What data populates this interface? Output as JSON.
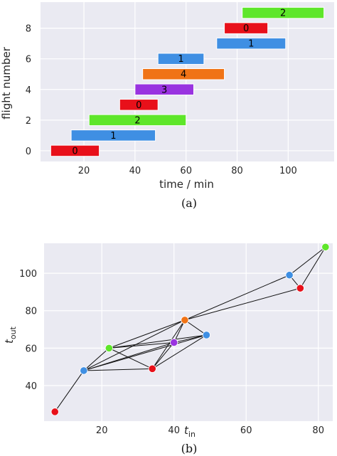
{
  "chart_data": [
    {
      "type": "bar",
      "panel_label": "(a)",
      "xlabel": "time / min",
      "ylabel": "flight number",
      "xticks": [
        20,
        40,
        60,
        80,
        100
      ],
      "yticks": [
        0,
        2,
        4,
        6,
        8
      ],
      "xlim": [
        3,
        118
      ],
      "ylim": [
        -0.7,
        9.7
      ],
      "grid": true,
      "bars": [
        {
          "y": 0,
          "start": 7,
          "end": 26,
          "label": "0",
          "color": "#e8101a"
        },
        {
          "y": 1,
          "start": 15,
          "end": 48,
          "label": "1",
          "color": "#3f8fe3"
        },
        {
          "y": 2,
          "start": 22,
          "end": 60,
          "label": "2",
          "color": "#5ee62a"
        },
        {
          "y": 3,
          "start": 34,
          "end": 49,
          "label": "0",
          "color": "#e8101a"
        },
        {
          "y": 4,
          "start": 40,
          "end": 63,
          "label": "3",
          "color": "#9933e0"
        },
        {
          "y": 5,
          "start": 43,
          "end": 75,
          "label": "4",
          "color": "#f07316"
        },
        {
          "y": 6,
          "start": 49,
          "end": 67,
          "label": "1",
          "color": "#3f8fe3"
        },
        {
          "y": 7,
          "start": 72,
          "end": 99,
          "label": "1",
          "color": "#3f8fe3"
        },
        {
          "y": 8,
          "start": 75,
          "end": 92,
          "label": "0",
          "color": "#e8101a"
        },
        {
          "y": 9,
          "start": 82,
          "end": 114,
          "label": "2",
          "color": "#5ee62a"
        }
      ]
    },
    {
      "type": "scatter",
      "panel_label": "(b)",
      "xlabel_main": "t",
      "xlabel_sub": "in",
      "ylabel_main": "t",
      "ylabel_sub": "out",
      "xticks": [
        20,
        40,
        60,
        80
      ],
      "yticks": [
        40,
        60,
        80,
        100
      ],
      "xlim": [
        4,
        84
      ],
      "ylim": [
        21,
        116
      ],
      "grid": true,
      "points": [
        {
          "x": 7,
          "y": 26,
          "color": "#e8101a"
        },
        {
          "x": 15,
          "y": 48,
          "color": "#3f8fe3"
        },
        {
          "x": 22,
          "y": 60,
          "color": "#5ee62a"
        },
        {
          "x": 34,
          "y": 49,
          "color": "#e8101a"
        },
        {
          "x": 40,
          "y": 63,
          "color": "#9933e0"
        },
        {
          "x": 43,
          "y": 75,
          "color": "#f07316"
        },
        {
          "x": 49,
          "y": 67,
          "color": "#3f8fe3"
        },
        {
          "x": 72,
          "y": 99,
          "color": "#3f8fe3"
        },
        {
          "x": 75,
          "y": 92,
          "color": "#e8101a"
        },
        {
          "x": 82,
          "y": 114,
          "color": "#5ee62a"
        }
      ],
      "edges": [
        [
          0,
          1
        ],
        [
          1,
          2
        ],
        [
          1,
          3
        ],
        [
          1,
          4
        ],
        [
          1,
          5
        ],
        [
          1,
          6
        ],
        [
          2,
          3
        ],
        [
          2,
          4
        ],
        [
          2,
          5
        ],
        [
          2,
          6
        ],
        [
          3,
          4
        ],
        [
          3,
          5
        ],
        [
          3,
          6
        ],
        [
          4,
          5
        ],
        [
          4,
          6
        ],
        [
          5,
          6
        ],
        [
          5,
          7
        ],
        [
          5,
          8
        ],
        [
          7,
          8
        ],
        [
          7,
          9
        ],
        [
          8,
          9
        ]
      ]
    }
  ]
}
